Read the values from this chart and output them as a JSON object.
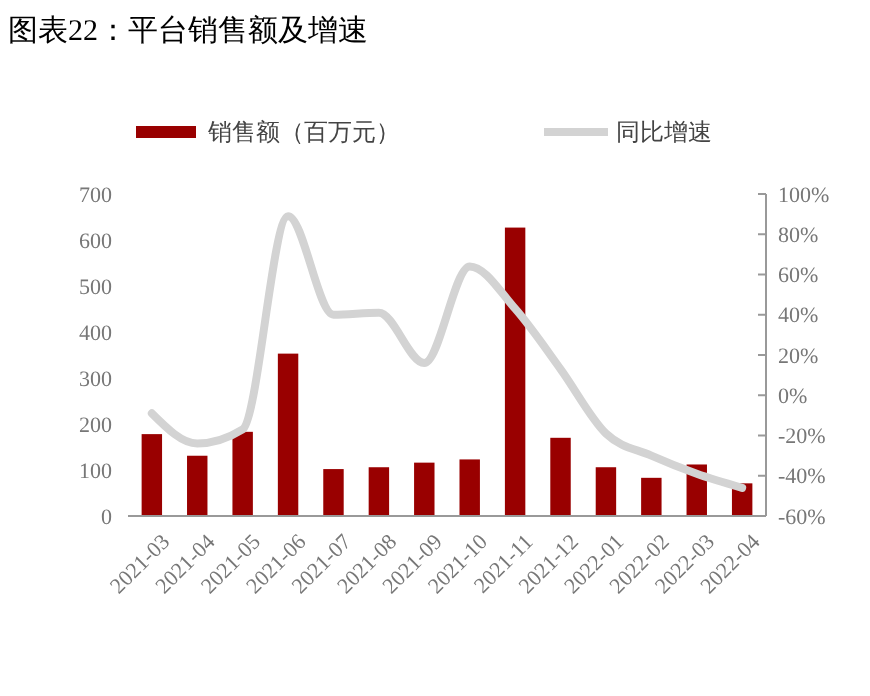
{
  "chart_data": {
    "type": "bar",
    "title": "图表22：平台销售额及增速",
    "categories": [
      "2021-03",
      "2021-04",
      "2021-05",
      "2021-06",
      "2021-07",
      "2021-08",
      "2021-09",
      "2021-10",
      "2021-11",
      "2021-12",
      "2022-01",
      "2022-02",
      "2022-03",
      "2022-04"
    ],
    "series": [
      {
        "name": "销售额（百万元）",
        "color": "#990000",
        "values": [
          178,
          131,
          183,
          353,
          102,
          106,
          116,
          123,
          627,
          170,
          106,
          83,
          112,
          71
        ]
      },
      {
        "name": "同比增速",
        "type": "line",
        "axis": "y2",
        "color": "#d3d3d3",
        "values": [
          -9,
          -24,
          -17,
          89,
          40,
          41,
          16,
          64,
          43,
          13,
          -19,
          -30,
          -39,
          -46
        ]
      }
    ],
    "ylim": [
      0,
      700
    ],
    "yticks": [
      0,
      100,
      200,
      300,
      400,
      500,
      600,
      700
    ],
    "y2lim": [
      -60,
      100
    ],
    "y2ticks": [
      {
        "value": 100,
        "label": "100%"
      },
      {
        "value": 80,
        "label": "80%"
      },
      {
        "value": 60,
        "label": "60%"
      },
      {
        "value": 40,
        "label": "40%"
      },
      {
        "value": 20,
        "label": "20%"
      },
      {
        "value": 0,
        "label": "0%"
      },
      {
        "value": -20,
        "label": "-20%"
      },
      {
        "value": -40,
        "label": "-40%"
      },
      {
        "value": -60,
        "label": "-60%"
      }
    ],
    "legend": "top",
    "grid": false
  }
}
